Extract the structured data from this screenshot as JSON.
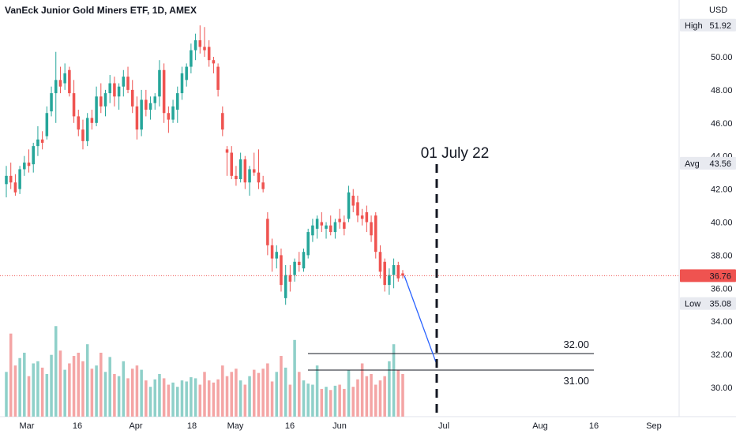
{
  "header": {
    "title": "VanEck Junior Gold Miners ETF, 1D, AMEX",
    "currency": "USD"
  },
  "badges": {
    "high": {
      "label": "High",
      "value": "51.92"
    },
    "avg": {
      "label": "Avg",
      "value": "43.56"
    },
    "last": {
      "value": "36.76"
    },
    "low": {
      "label": "Low",
      "value": "35.08"
    }
  },
  "annotation": {
    "text": "01 July 22"
  },
  "levels": [
    {
      "value": 32.0,
      "label": "32.00"
    },
    {
      "value": 31.0,
      "label": "31.00"
    }
  ],
  "colors": {
    "up": "#26a69a",
    "down": "#ef5350",
    "up_vol": "#8fd0c9",
    "down_vol": "#f4a5a5",
    "projection": "#2962ff",
    "axis_text": "#131722"
  },
  "chart_data": {
    "type": "candlestick",
    "y_ticks": [
      "50.00",
      "48.00",
      "46.00",
      "44.00",
      "42.00",
      "40.00",
      "38.00",
      "36.00",
      "34.00",
      "32.00",
      "30.00"
    ],
    "x_ticks": [
      "Mar",
      "16",
      "Apr",
      "18",
      "May",
      "16",
      "Jun",
      "Jul",
      "Aug",
      "16",
      "Sep"
    ],
    "ylim": [
      29,
      53
    ],
    "candles": [
      {
        "o": 42.3,
        "h": 43.4,
        "l": 41.5,
        "c": 42.8
      },
      {
        "o": 42.8,
        "h": 43.6,
        "l": 42.0,
        "c": 42.4
      },
      {
        "o": 42.4,
        "h": 42.9,
        "l": 41.6,
        "c": 41.8
      },
      {
        "o": 42.0,
        "h": 43.4,
        "l": 41.7,
        "c": 43.2
      },
      {
        "o": 43.2,
        "h": 44.0,
        "l": 42.8,
        "c": 43.6
      },
      {
        "o": 43.6,
        "h": 44.4,
        "l": 43.0,
        "c": 43.4
      },
      {
        "o": 43.5,
        "h": 44.8,
        "l": 43.0,
        "c": 44.6
      },
      {
        "o": 44.6,
        "h": 45.8,
        "l": 44.0,
        "c": 45.0
      },
      {
        "o": 45.0,
        "h": 45.5,
        "l": 44.4,
        "c": 44.8
      },
      {
        "o": 45.2,
        "h": 47.0,
        "l": 45.0,
        "c": 46.6
      },
      {
        "o": 46.7,
        "h": 48.2,
        "l": 46.4,
        "c": 47.8
      },
      {
        "o": 47.8,
        "h": 50.3,
        "l": 46.0,
        "c": 48.6
      },
      {
        "o": 48.6,
        "h": 49.4,
        "l": 47.8,
        "c": 48.2
      },
      {
        "o": 48.4,
        "h": 49.6,
        "l": 48.0,
        "c": 49.0
      },
      {
        "o": 49.2,
        "h": 49.4,
        "l": 47.6,
        "c": 47.8
      },
      {
        "o": 47.8,
        "h": 48.6,
        "l": 46.0,
        "c": 46.4
      },
      {
        "o": 46.4,
        "h": 46.8,
        "l": 45.2,
        "c": 45.6
      },
      {
        "o": 45.6,
        "h": 46.2,
        "l": 44.4,
        "c": 44.9
      },
      {
        "o": 44.9,
        "h": 46.6,
        "l": 44.6,
        "c": 46.3
      },
      {
        "o": 46.3,
        "h": 46.8,
        "l": 45.6,
        "c": 46.0
      },
      {
        "o": 46.0,
        "h": 48.2,
        "l": 45.8,
        "c": 47.6
      },
      {
        "o": 47.6,
        "h": 48.4,
        "l": 46.6,
        "c": 47.0
      },
      {
        "o": 47.0,
        "h": 48.0,
        "l": 46.4,
        "c": 47.8
      },
      {
        "o": 47.8,
        "h": 48.9,
        "l": 47.2,
        "c": 48.4
      },
      {
        "o": 48.4,
        "h": 48.8,
        "l": 47.0,
        "c": 47.6
      },
      {
        "o": 47.6,
        "h": 48.4,
        "l": 46.8,
        "c": 48.2
      },
      {
        "o": 48.2,
        "h": 49.2,
        "l": 47.6,
        "c": 48.8
      },
      {
        "o": 48.8,
        "h": 49.4,
        "l": 47.8,
        "c": 48.0
      },
      {
        "o": 48.0,
        "h": 48.6,
        "l": 46.6,
        "c": 47.0
      },
      {
        "o": 47.0,
        "h": 47.6,
        "l": 45.0,
        "c": 45.6
      },
      {
        "o": 45.6,
        "h": 48.0,
        "l": 45.2,
        "c": 47.4
      },
      {
        "o": 47.4,
        "h": 48.0,
        "l": 46.4,
        "c": 46.8
      },
      {
        "o": 46.8,
        "h": 47.6,
        "l": 46.2,
        "c": 47.2
      },
      {
        "o": 47.2,
        "h": 47.8,
        "l": 46.8,
        "c": 47.6
      },
      {
        "o": 47.6,
        "h": 49.8,
        "l": 47.0,
        "c": 49.2
      },
      {
        "o": 49.2,
        "h": 49.6,
        "l": 46.0,
        "c": 46.6
      },
      {
        "o": 46.6,
        "h": 47.0,
        "l": 45.4,
        "c": 46.2
      },
      {
        "o": 46.2,
        "h": 47.4,
        "l": 46.0,
        "c": 47.0
      },
      {
        "o": 46.8,
        "h": 48.2,
        "l": 46.0,
        "c": 47.8
      },
      {
        "o": 47.8,
        "h": 49.4,
        "l": 47.4,
        "c": 49.0
      },
      {
        "o": 48.6,
        "h": 49.6,
        "l": 48.2,
        "c": 49.4
      },
      {
        "o": 49.4,
        "h": 50.8,
        "l": 49.0,
        "c": 50.4
      },
      {
        "o": 50.4,
        "h": 51.4,
        "l": 49.8,
        "c": 51.0
      },
      {
        "o": 51.0,
        "h": 51.9,
        "l": 50.2,
        "c": 50.6
      },
      {
        "o": 50.6,
        "h": 51.8,
        "l": 50.0,
        "c": 50.4
      },
      {
        "o": 50.6,
        "h": 51.0,
        "l": 49.4,
        "c": 49.8
      },
      {
        "o": 49.8,
        "h": 50.0,
        "l": 49.0,
        "c": 49.6
      },
      {
        "o": 49.4,
        "h": 49.6,
        "l": 47.6,
        "c": 48.0
      },
      {
        "o": 46.6,
        "h": 47.0,
        "l": 45.2,
        "c": 45.6
      },
      {
        "o": 44.4,
        "h": 44.6,
        "l": 42.8,
        "c": 44.2
      },
      {
        "o": 44.2,
        "h": 44.6,
        "l": 42.6,
        "c": 42.8
      },
      {
        "o": 42.8,
        "h": 43.4,
        "l": 42.2,
        "c": 42.6
      },
      {
        "o": 42.6,
        "h": 44.2,
        "l": 42.4,
        "c": 43.8
      },
      {
        "o": 43.8,
        "h": 44.0,
        "l": 42.0,
        "c": 42.4
      },
      {
        "o": 42.4,
        "h": 43.4,
        "l": 41.6,
        "c": 43.2
      },
      {
        "o": 43.2,
        "h": 44.2,
        "l": 42.8,
        "c": 43.0
      },
      {
        "o": 43.0,
        "h": 44.4,
        "l": 42.0,
        "c": 42.4
      },
      {
        "o": 42.4,
        "h": 42.8,
        "l": 41.8,
        "c": 42.0
      },
      {
        "o": 40.2,
        "h": 40.6,
        "l": 38.0,
        "c": 38.6
      },
      {
        "o": 38.6,
        "h": 39.0,
        "l": 37.0,
        "c": 37.8
      },
      {
        "o": 37.8,
        "h": 38.6,
        "l": 37.2,
        "c": 38.2
      },
      {
        "o": 38.0,
        "h": 38.4,
        "l": 35.8,
        "c": 36.2
      },
      {
        "o": 35.4,
        "h": 37.4,
        "l": 35.0,
        "c": 36.8
      },
      {
        "o": 36.8,
        "h": 37.4,
        "l": 35.8,
        "c": 36.4
      },
      {
        "o": 36.8,
        "h": 37.8,
        "l": 36.4,
        "c": 37.6
      },
      {
        "o": 37.6,
        "h": 38.2,
        "l": 37.0,
        "c": 37.4
      },
      {
        "o": 37.2,
        "h": 38.4,
        "l": 37.0,
        "c": 38.2
      },
      {
        "o": 38.0,
        "h": 39.6,
        "l": 37.8,
        "c": 39.4
      },
      {
        "o": 39.2,
        "h": 40.2,
        "l": 38.8,
        "c": 39.8
      },
      {
        "o": 39.6,
        "h": 40.4,
        "l": 39.0,
        "c": 40.2
      },
      {
        "o": 40.0,
        "h": 40.6,
        "l": 39.4,
        "c": 39.8
      },
      {
        "o": 39.6,
        "h": 40.0,
        "l": 39.0,
        "c": 39.8
      },
      {
        "o": 39.8,
        "h": 40.4,
        "l": 39.2,
        "c": 39.4
      },
      {
        "o": 39.4,
        "h": 40.2,
        "l": 39.0,
        "c": 40.0
      },
      {
        "o": 40.2,
        "h": 40.8,
        "l": 39.6,
        "c": 40.0
      },
      {
        "o": 40.0,
        "h": 40.4,
        "l": 39.2,
        "c": 39.6
      },
      {
        "o": 40.2,
        "h": 42.2,
        "l": 40.0,
        "c": 41.8
      },
      {
        "o": 41.6,
        "h": 42.0,
        "l": 40.6,
        "c": 41.0
      },
      {
        "o": 41.2,
        "h": 41.6,
        "l": 40.0,
        "c": 40.4
      },
      {
        "o": 40.4,
        "h": 40.8,
        "l": 39.8,
        "c": 40.2
      },
      {
        "o": 40.6,
        "h": 41.0,
        "l": 39.4,
        "c": 40.0
      },
      {
        "o": 40.0,
        "h": 40.4,
        "l": 38.8,
        "c": 39.2
      },
      {
        "o": 40.4,
        "h": 40.6,
        "l": 37.8,
        "c": 38.2
      },
      {
        "o": 38.2,
        "h": 38.6,
        "l": 36.6,
        "c": 37.0
      },
      {
        "o": 37.6,
        "h": 37.8,
        "l": 35.8,
        "c": 36.2
      },
      {
        "o": 36.2,
        "h": 37.2,
        "l": 35.6,
        "c": 36.8
      },
      {
        "o": 36.8,
        "h": 37.8,
        "l": 36.0,
        "c": 37.4
      },
      {
        "o": 37.4,
        "h": 37.6,
        "l": 36.4,
        "c": 36.6
      },
      {
        "o": 36.9,
        "h": 37.1,
        "l": 36.6,
        "c": 36.76
      }
    ]
  }
}
